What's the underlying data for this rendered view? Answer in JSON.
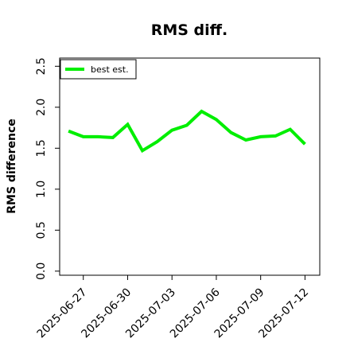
{
  "chart_data": {
    "type": "line",
    "title": "RMS diff.",
    "xlabel": "",
    "ylabel": "RMS difference",
    "x": [
      "2025-06-26",
      "2025-06-27",
      "2025-06-28",
      "2025-06-29",
      "2025-06-30",
      "2025-07-01",
      "2025-07-02",
      "2025-07-03",
      "2025-07-04",
      "2025-07-05",
      "2025-07-06",
      "2025-07-07",
      "2025-07-08",
      "2025-07-09",
      "2025-07-10",
      "2025-07-11",
      "2025-07-12"
    ],
    "series": [
      {
        "name": "best est.",
        "color": "#00ee00",
        "values": [
          1.71,
          1.64,
          1.64,
          1.63,
          1.79,
          1.47,
          1.58,
          1.72,
          1.78,
          1.95,
          1.85,
          1.69,
          1.6,
          1.64,
          1.65,
          1.73,
          1.55
        ]
      }
    ],
    "ylim": [
      -0.05,
      2.6
    ],
    "yticks": [
      "0.0",
      "0.5",
      "1.0",
      "1.5",
      "2.0",
      "2.5"
    ],
    "ytick_values": [
      0.0,
      0.5,
      1.0,
      1.5,
      2.0,
      2.5
    ],
    "xticks": [
      "2025-06-27",
      "2025-06-30",
      "2025-07-03",
      "2025-07-06",
      "2025-07-09",
      "2025-07-12"
    ],
    "legend_position": "top-left",
    "grid": false
  }
}
